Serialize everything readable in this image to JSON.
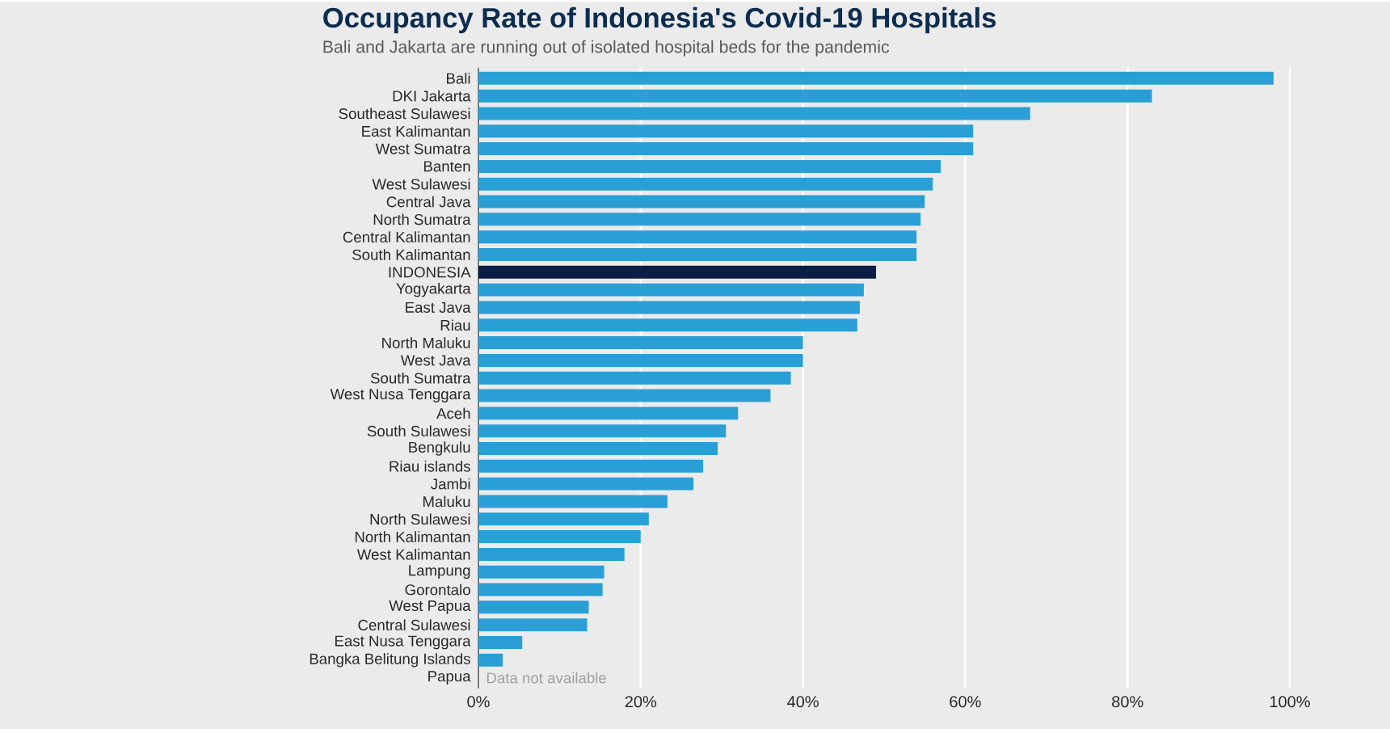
{
  "chart_data": {
    "type": "bar",
    "orientation": "horizontal",
    "title": "Occupancy Rate of Indonesia's Covid-19 Hospitals",
    "subtitle": "Bali and Jakarta are running out of isolated hospital beds for the pandemic",
    "categories": [
      "Bali",
      "DKI Jakarta",
      "Southeast Sulawesi",
      "East Kalimantan",
      "West Sumatra",
      "Banten",
      "West Sulawesi",
      "Central Java",
      "North Sumatra",
      "Central Kalimantan",
      "South Kalimantan",
      "INDONESIA",
      "Yogyakarta",
      "East Java",
      "Riau",
      "North Maluku",
      "West Java",
      "South Sumatra",
      "West Nusa Tenggara",
      "Aceh",
      "South Sulawesi",
      "Bengkulu",
      "Riau islands",
      "Jambi",
      "Maluku",
      "North Sulawesi",
      "North Kalimantan",
      "West Kalimantan",
      "Lampung",
      "Gorontalo",
      "West Papua",
      "Central Sulawesi",
      "East Nusa Tenggara",
      "Bangka Belitung Islands",
      "Papua"
    ],
    "values": [
      98,
      83,
      68,
      61,
      61,
      57,
      56,
      55,
      54.5,
      54,
      54,
      49,
      47.5,
      47,
      46.7,
      40,
      40,
      38.5,
      36,
      32,
      30.5,
      29.5,
      27.7,
      26.5,
      23.3,
      21,
      20,
      18,
      15.5,
      15.3,
      13.6,
      13.4,
      5.4,
      3,
      null
    ],
    "colors": [
      "#2a9fd6",
      "#2a9fd6",
      "#2a9fd6",
      "#2a9fd6",
      "#2a9fd6",
      "#2a9fd6",
      "#2a9fd6",
      "#2a9fd6",
      "#2a9fd6",
      "#2a9fd6",
      "#2a9fd6",
      "#0b1d45",
      "#2a9fd6",
      "#2a9fd6",
      "#2a9fd6",
      "#2a9fd6",
      "#2a9fd6",
      "#2a9fd6",
      "#2a9fd6",
      "#2a9fd6",
      "#2a9fd6",
      "#2a9fd6",
      "#2a9fd6",
      "#2a9fd6",
      "#2a9fd6",
      "#2a9fd6",
      "#2a9fd6",
      "#2a9fd6",
      "#2a9fd6",
      "#2a9fd6",
      "#2a9fd6",
      "#2a9fd6",
      "#2a9fd6",
      "#2a9fd6",
      "#2a9fd6"
    ],
    "xlim": [
      0,
      100
    ],
    "xticks": [
      {
        "value": 0,
        "label": "0%"
      },
      {
        "value": 20,
        "label": "20%"
      },
      {
        "value": 40,
        "label": "40%"
      },
      {
        "value": 60,
        "label": "60%"
      },
      {
        "value": 80,
        "label": "80%"
      },
      {
        "value": 100,
        "label": "100%"
      }
    ],
    "grid": "x",
    "annotations": [
      "Data not available"
    ]
  }
}
